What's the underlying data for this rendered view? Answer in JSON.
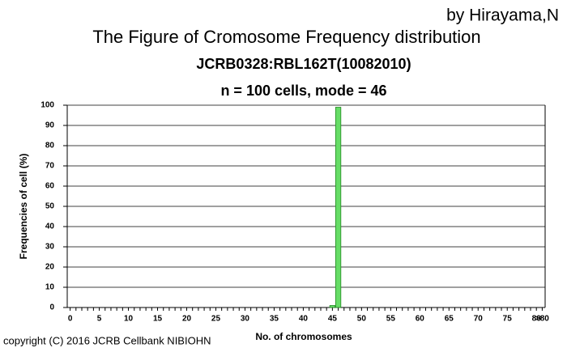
{
  "chart_data": {
    "type": "bar",
    "byline": "by Hirayama,N",
    "title": "The Figure of Cromosome Frequency distribution",
    "subtitle": "JCRB0328:RBL162T(10082010)",
    "summary": "n = 100 cells,  mode = 46",
    "y_label": "Frequencies of cell (%)",
    "x_label": "No. of chromosomes",
    "footer": "copyright (C) 2016 JCRB Cellbank NIBIOHN",
    "categories": [
      "0",
      null,
      null,
      null,
      null,
      "5",
      null,
      null,
      null,
      null,
      "10",
      null,
      null,
      null,
      null,
      "15",
      null,
      null,
      null,
      null,
      "20",
      null,
      null,
      null,
      null,
      "25",
      null,
      null,
      null,
      null,
      "30",
      null,
      null,
      null,
      null,
      "35",
      null,
      null,
      null,
      null,
      "40",
      null,
      null,
      null,
      null,
      "45",
      null,
      null,
      null,
      null,
      "50",
      null,
      null,
      null,
      null,
      "55",
      null,
      null,
      null,
      null,
      "60",
      null,
      null,
      null,
      null,
      "65",
      null,
      null,
      null,
      null,
      "70",
      null,
      null,
      null,
      null,
      "75",
      null,
      null,
      null,
      null,
      "80",
      ">80"
    ],
    "values": [
      0,
      0,
      0,
      0,
      0,
      0,
      0,
      0,
      0,
      0,
      0,
      0,
      0,
      0,
      0,
      0,
      0,
      0,
      0,
      0,
      0,
      0,
      0,
      0,
      0,
      0,
      0,
      0,
      0,
      0,
      0,
      0,
      0,
      0,
      0,
      0,
      0,
      0,
      0,
      0,
      0,
      0,
      0,
      0,
      0,
      1,
      99,
      0,
      0,
      0,
      0,
      0,
      0,
      0,
      0,
      0,
      0,
      0,
      0,
      0,
      0,
      0,
      0,
      0,
      0,
      0,
      0,
      0,
      0,
      0,
      0,
      0,
      0,
      0,
      0,
      0,
      0,
      0,
      0,
      0,
      0,
      0
    ],
    "color": "#66dd66",
    "ylim": [
      0,
      100
    ],
    "yticks": [
      0,
      10,
      20,
      30,
      40,
      50,
      60,
      70,
      80,
      90,
      100
    ],
    "grid": true
  }
}
